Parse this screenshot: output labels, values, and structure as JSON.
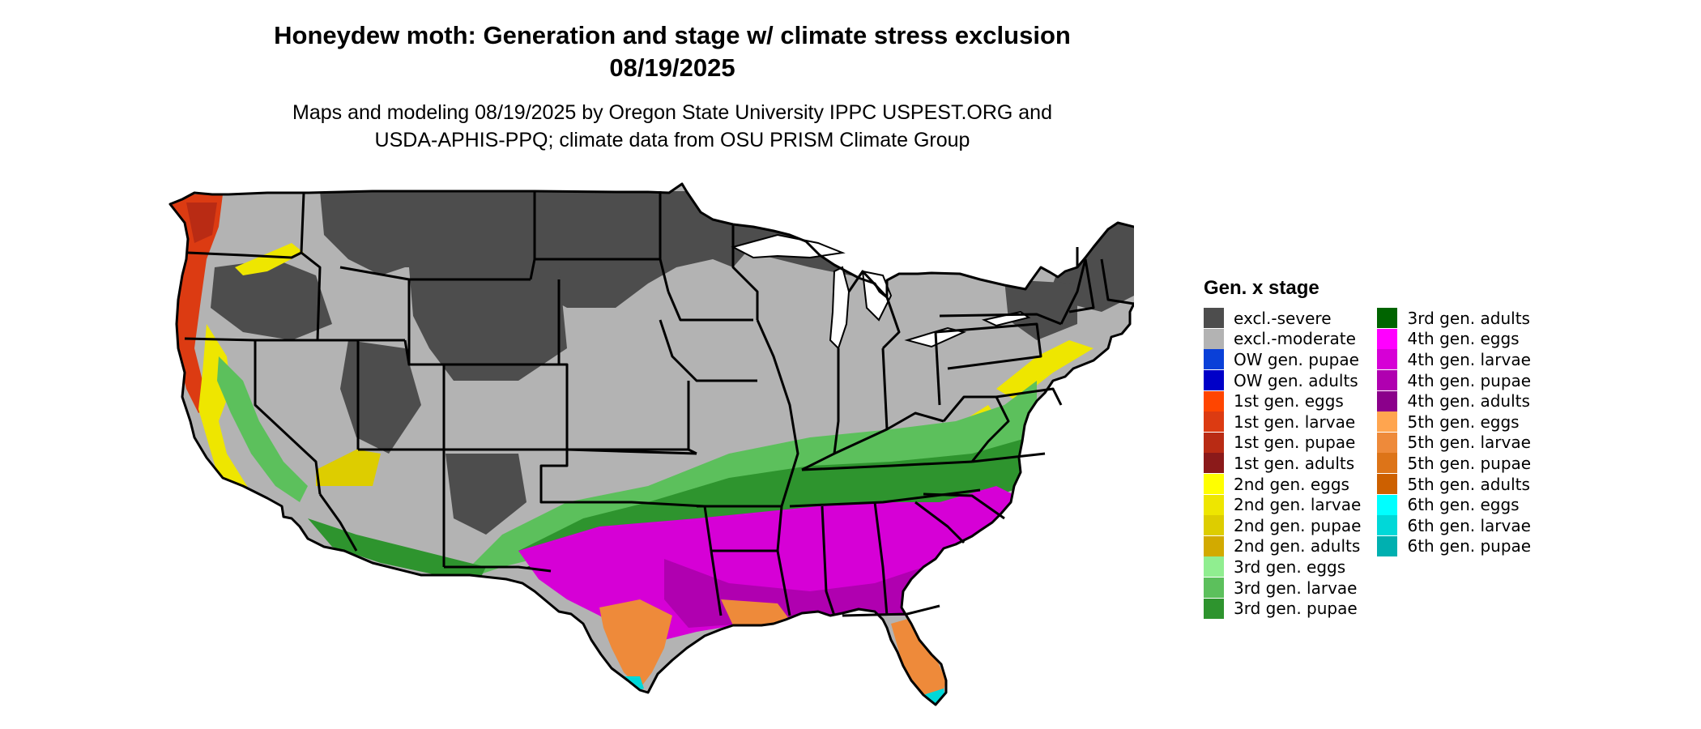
{
  "header": {
    "title_line1": "Honeydew moth: Generation and stage w/ climate stress exclusion",
    "title_line2": "08/19/2025",
    "subtitle_line1": "Maps and modeling 08/19/2025 by Oregon State University IPPC USPEST.ORG and",
    "subtitle_line2": "USDA-APHIS-PPQ; climate data from OSU PRISM Climate Group"
  },
  "legend": {
    "title": "Gen. x stage",
    "columns": [
      [
        {
          "label": "excl.-severe",
          "color": "#4d4d4d"
        },
        {
          "label": "excl.-moderate",
          "color": "#b3b3b3"
        },
        {
          "label": "OW gen. pupae",
          "color": "#0a40d8"
        },
        {
          "label": "OW gen. adults",
          "color": "#0000c8"
        },
        {
          "label": "1st gen. eggs",
          "color": "#ff4500"
        },
        {
          "label": "1st gen. larvae",
          "color": "#dc3b12"
        },
        {
          "label": "1st gen. pupae",
          "color": "#b92b14"
        },
        {
          "label": "1st gen. adults",
          "color": "#8b1a1a"
        },
        {
          "label": "2nd gen. eggs",
          "color": "#ffff00"
        },
        {
          "label": "2nd gen. larvae",
          "color": "#eee600"
        },
        {
          "label": "2nd gen. pupae",
          "color": "#ddcd00"
        },
        {
          "label": "2nd gen. adults",
          "color": "#d2aa00"
        },
        {
          "label": "3rd gen. eggs",
          "color": "#90ee90"
        },
        {
          "label": "3rd gen. larvae",
          "color": "#5cc05c"
        },
        {
          "label": "3rd gen. pupae",
          "color": "#2e942e"
        }
      ],
      [
        {
          "label": "3rd gen. adults",
          "color": "#006400"
        },
        {
          "label": "4th gen. eggs",
          "color": "#ff00ff"
        },
        {
          "label": "4th gen. larvae",
          "color": "#d600d6"
        },
        {
          "label": "4th gen. pupae",
          "color": "#b000b0"
        },
        {
          "label": "4th gen. adults",
          "color": "#8b008b"
        },
        {
          "label": "5th gen. eggs",
          "color": "#ffa54f"
        },
        {
          "label": "5th gen. larvae",
          "color": "#ee8a3a"
        },
        {
          "label": "5th gen. pupae",
          "color": "#dd7418"
        },
        {
          "label": "5th gen. adults",
          "color": "#cd6000"
        },
        {
          "label": "6th gen. eggs",
          "color": "#00ffff"
        },
        {
          "label": "6th gen. larvae",
          "color": "#00d8d8"
        },
        {
          "label": "6th gen. pupae",
          "color": "#00b0b0"
        }
      ]
    ]
  }
}
